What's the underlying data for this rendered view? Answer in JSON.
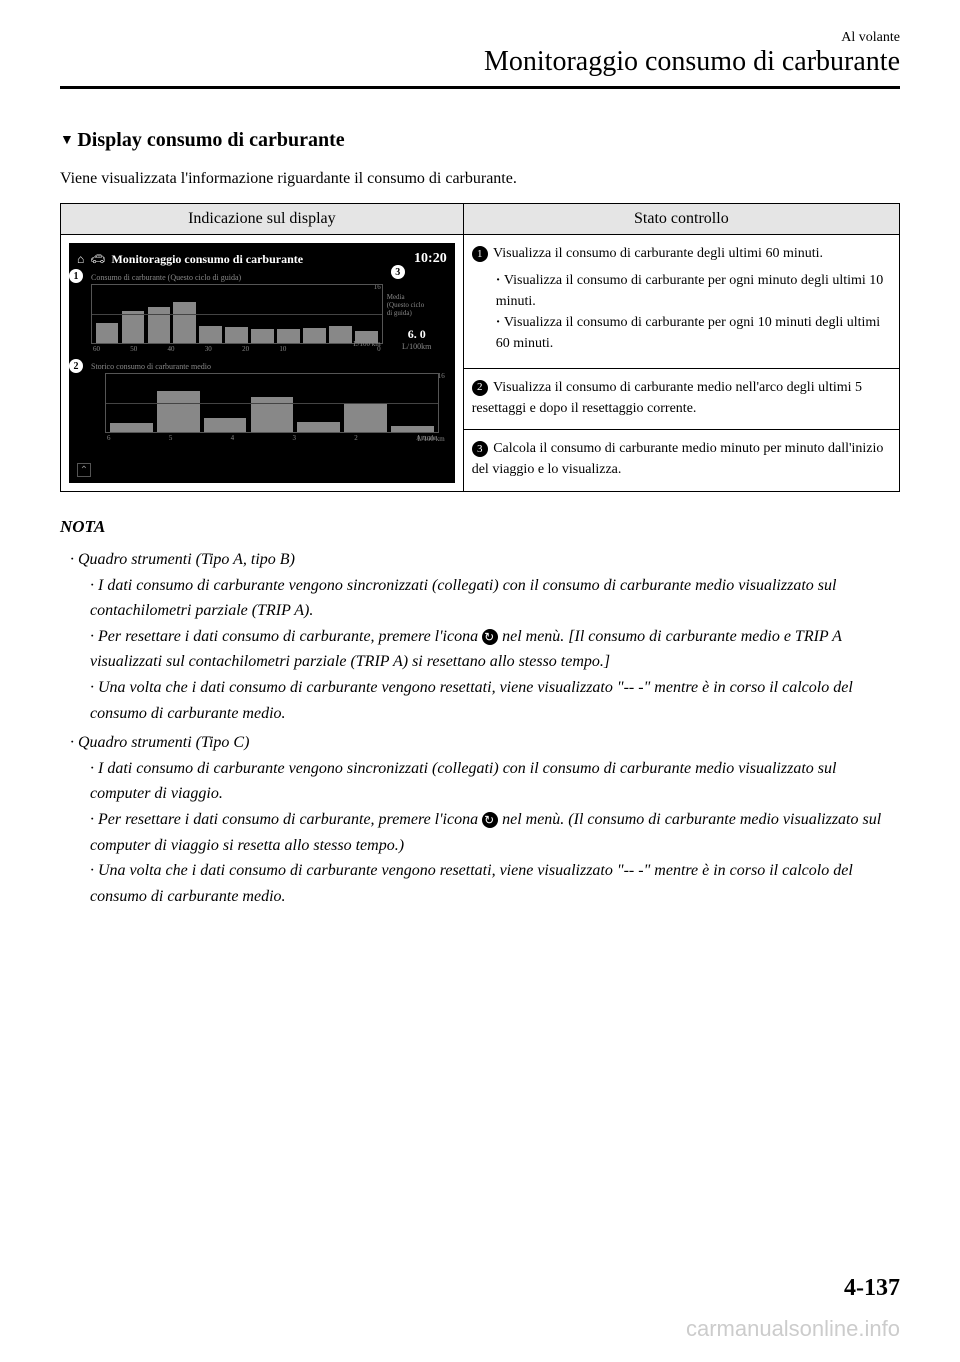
{
  "header": {
    "small": "Al volante",
    "title": "Monitoraggio consumo di carburante"
  },
  "section_heading": "Display consumo di carburante",
  "intro": "Viene visualizzata l'informazione riguardante il consumo di carburante.",
  "table": {
    "col1_header": "Indicazione sul display",
    "col2_header": "Stato controllo"
  },
  "screen": {
    "title": "Monitoraggio consumo di carburante",
    "time": "10:20",
    "chart1": {
      "label": "Consumo di carburante (Questo ciclo di guida)",
      "y_top": "16",
      "y_unit": "L/100 km",
      "x_end": "0 min",
      "x_labels": [
        "60",
        "50",
        "40",
        "30",
        "20",
        "10",
        "",
        "",
        "0"
      ],
      "bars": [
        35,
        55,
        62,
        70,
        30,
        28,
        25,
        24,
        26,
        30,
        20
      ]
    },
    "chart2": {
      "label": "Storico consumo di carburante medio",
      "y_top": "16",
      "y_unit": "L/100 km",
      "x_labels": [
        "6",
        "5",
        "4",
        "3",
        "2",
        "Attuale"
      ],
      "bars": [
        15,
        70,
        25,
        60,
        18,
        48,
        10
      ]
    },
    "media": {
      "label1": "Media",
      "label2": "(Questo ciclo",
      "label3": "di guida)",
      "value": "6. 0",
      "unit": "L/100km"
    }
  },
  "stato": {
    "row1_text": " Visualizza il consumo di carburante degli ultimi 60 minuti.",
    "row1_li1": "Visualizza il consumo di carburante per ogni minuto degli ultimi 10 minuti.",
    "row1_li2": "Visualizza il consumo di carburante per ogni 10 minuti degli ultimi 60 minuti.",
    "row2_text": " Visualizza il consumo di carburante medio nell'arco degli ultimi 5 resettaggi e dopo il resettaggio corrente.",
    "row3_text": " Calcola il consumo di carburante medio minuto per minuto dall'inizio del viaggio e lo visualizza."
  },
  "nota": {
    "heading": "NOTA",
    "group_a_heading": "Quadro strumenti (Tipo A, tipo B)",
    "a1": "I dati consumo di carburante vengono sincronizzati (collegati) con il consumo di carburante medio visualizzato sul contachilometri parziale (TRIP A).",
    "a2_pre": "Per resettare i dati consumo di carburante, premere l'icona ",
    "a2_post": " nel menù. [Il consumo di carburante medio e TRIP A visualizzati sul contachilometri parziale (TRIP A) si resettano allo stesso tempo.]",
    "a3": "Una volta che i dati consumo di carburante vengono resettati, viene visualizzato \"-- -\" mentre è in corso il calcolo del consumo di carburante medio.",
    "group_c_heading": "Quadro strumenti (Tipo C)",
    "c1": "I dati consumo di carburante vengono sincronizzati (collegati) con il consumo di carburante medio visualizzato sul computer di viaggio.",
    "c2_pre": "Per resettare i dati consumo di carburante, premere l'icona ",
    "c2_post": " nel menù. (Il consumo di carburante medio visualizzato sul computer di viaggio si resetta allo stesso tempo.)",
    "c3": "Una volta che i dati consumo di carburante vengono resettati, viene visualizzato \"-- -\" mentre è in corso il calcolo del consumo di carburante medio."
  },
  "page_number": "4-137",
  "watermark": "carmanualsonline.info"
}
